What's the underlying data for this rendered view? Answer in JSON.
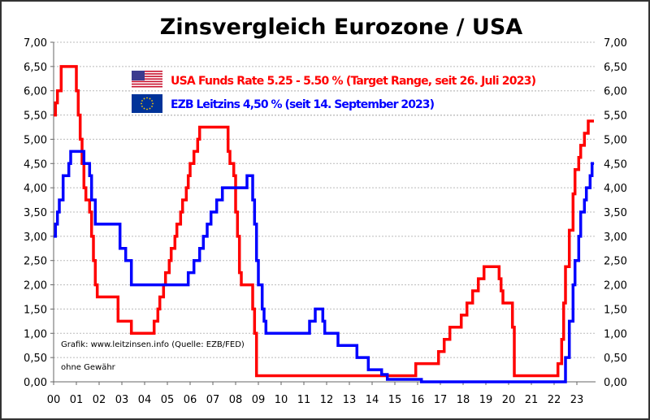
{
  "chart_data": {
    "type": "line",
    "title": "Zinsvergleich Eurozone / USA",
    "xlabel": "",
    "ylabel": "",
    "xlim": [
      "2000-01",
      "2023-10"
    ],
    "ylim": [
      0,
      7
    ],
    "grid": true,
    "legend_placement": "top-center",
    "x_tick_labels": [
      "00",
      "01",
      "02",
      "03",
      "04",
      "05",
      "06",
      "07",
      "08",
      "09",
      "10",
      "11",
      "12",
      "13",
      "14",
      "15",
      "16",
      "17",
      "18",
      "19",
      "20",
      "21",
      "22",
      "23"
    ],
    "y_tick_labels": [
      "0,00",
      "0,50",
      "1,00",
      "1,50",
      "2,00",
      "2,50",
      "3,00",
      "3,50",
      "4,00",
      "4,50",
      "5,00",
      "5,50",
      "6,00",
      "6,50",
      "7,00"
    ],
    "annotations": [
      "Grafik: www.leitzinsen.info (Quelle: EZB/FED)",
      "ohne Gewähr"
    ],
    "series": [
      {
        "name": "USA Funds Rate 5.25 - 5.50 % (Target Range, seit 26. Juli 2023)",
        "color": "#ff0000",
        "icon": "us-flag-icon",
        "step_points": [
          [
            "2000-01",
            5.5
          ],
          [
            "2000-02",
            5.75
          ],
          [
            "2000-03",
            6.0
          ],
          [
            "2000-05",
            6.5
          ],
          [
            "2001-01",
            6.0
          ],
          [
            "2001-02",
            5.5
          ],
          [
            "2001-03",
            5.0
          ],
          [
            "2001-04",
            4.5
          ],
          [
            "2001-05",
            4.0
          ],
          [
            "2001-06",
            3.75
          ],
          [
            "2001-08",
            3.5
          ],
          [
            "2001-09",
            3.0
          ],
          [
            "2001-10",
            2.5
          ],
          [
            "2001-11",
            2.0
          ],
          [
            "2001-12",
            1.75
          ],
          [
            "2002-11",
            1.25
          ],
          [
            "2003-06",
            1.0
          ],
          [
            "2004-06",
            1.25
          ],
          [
            "2004-08",
            1.5
          ],
          [
            "2004-09",
            1.75
          ],
          [
            "2004-11",
            2.0
          ],
          [
            "2004-12",
            2.25
          ],
          [
            "2005-02",
            2.5
          ],
          [
            "2005-03",
            2.75
          ],
          [
            "2005-05",
            3.0
          ],
          [
            "2005-06",
            3.25
          ],
          [
            "2005-08",
            3.5
          ],
          [
            "2005-09",
            3.75
          ],
          [
            "2005-11",
            4.0
          ],
          [
            "2005-12",
            4.25
          ],
          [
            "2006-01",
            4.5
          ],
          [
            "2006-03",
            4.75
          ],
          [
            "2006-05",
            5.0
          ],
          [
            "2006-06",
            5.25
          ],
          [
            "2007-09",
            4.75
          ],
          [
            "2007-10",
            4.5
          ],
          [
            "2007-12",
            4.25
          ],
          [
            "2008-01",
            3.5
          ],
          [
            "2008-02",
            3.0
          ],
          [
            "2008-03",
            2.25
          ],
          [
            "2008-04",
            2.0
          ],
          [
            "2008-10",
            1.5
          ],
          [
            "2008-11",
            1.0
          ],
          [
            "2008-12",
            0.125
          ],
          [
            "2015-12",
            0.375
          ],
          [
            "2016-12",
            0.625
          ],
          [
            "2017-03",
            0.875
          ],
          [
            "2017-06",
            1.125
          ],
          [
            "2017-12",
            1.375
          ],
          [
            "2018-03",
            1.625
          ],
          [
            "2018-06",
            1.875
          ],
          [
            "2018-09",
            2.125
          ],
          [
            "2018-12",
            2.375
          ],
          [
            "2019-08",
            2.125
          ],
          [
            "2019-09",
            1.875
          ],
          [
            "2019-10",
            1.625
          ],
          [
            "2020-03",
            1.125
          ],
          [
            "2020-04",
            0.125
          ],
          [
            "2022-03",
            0.375
          ],
          [
            "2022-05",
            0.875
          ],
          [
            "2022-06",
            1.625
          ],
          [
            "2022-07",
            2.375
          ],
          [
            "2022-09",
            3.125
          ],
          [
            "2022-11",
            3.875
          ],
          [
            "2022-12",
            4.375
          ],
          [
            "2023-02",
            4.625
          ],
          [
            "2023-03",
            4.875
          ],
          [
            "2023-05",
            5.125
          ],
          [
            "2023-07",
            5.375
          ],
          [
            "2023-10",
            5.375
          ]
        ]
      },
      {
        "name": "EZB Leitzins 4,50 %  (seit 14. September 2023)",
        "color": "#0000ff",
        "icon": "eu-flag-icon",
        "step_points": [
          [
            "2000-01",
            3.0
          ],
          [
            "2000-02",
            3.25
          ],
          [
            "2000-03",
            3.5
          ],
          [
            "2000-04",
            3.75
          ],
          [
            "2000-06",
            4.25
          ],
          [
            "2000-09",
            4.5
          ],
          [
            "2000-10",
            4.75
          ],
          [
            "2001-05",
            4.5
          ],
          [
            "2001-08",
            4.25
          ],
          [
            "2001-09",
            3.75
          ],
          [
            "2001-11",
            3.25
          ],
          [
            "2002-12",
            2.75
          ],
          [
            "2003-03",
            2.5
          ],
          [
            "2003-06",
            2.0
          ],
          [
            "2005-12",
            2.25
          ],
          [
            "2006-03",
            2.5
          ],
          [
            "2006-06",
            2.75
          ],
          [
            "2006-08",
            3.0
          ],
          [
            "2006-10",
            3.25
          ],
          [
            "2006-12",
            3.5
          ],
          [
            "2007-03",
            3.75
          ],
          [
            "2007-06",
            4.0
          ],
          [
            "2008-07",
            4.25
          ],
          [
            "2008-10",
            3.75
          ],
          [
            "2008-11",
            3.25
          ],
          [
            "2008-12",
            2.5
          ],
          [
            "2009-01",
            2.0
          ],
          [
            "2009-03",
            1.5
          ],
          [
            "2009-04",
            1.25
          ],
          [
            "2009-05",
            1.0
          ],
          [
            "2011-04",
            1.25
          ],
          [
            "2011-07",
            1.5
          ],
          [
            "2011-11",
            1.25
          ],
          [
            "2011-12",
            1.0
          ],
          [
            "2012-07",
            0.75
          ],
          [
            "2013-05",
            0.5
          ],
          [
            "2013-11",
            0.25
          ],
          [
            "2014-06",
            0.15
          ],
          [
            "2014-09",
            0.05
          ],
          [
            "2016-03",
            0.0
          ],
          [
            "2022-07",
            0.5
          ],
          [
            "2022-09",
            1.25
          ],
          [
            "2022-11",
            2.0
          ],
          [
            "2022-12",
            2.5
          ],
          [
            "2023-02",
            3.0
          ],
          [
            "2023-03",
            3.5
          ],
          [
            "2023-05",
            3.75
          ],
          [
            "2023-06",
            4.0
          ],
          [
            "2023-08",
            4.25
          ],
          [
            "2023-09",
            4.5
          ],
          [
            "2023-10",
            4.5
          ]
        ]
      }
    ]
  }
}
